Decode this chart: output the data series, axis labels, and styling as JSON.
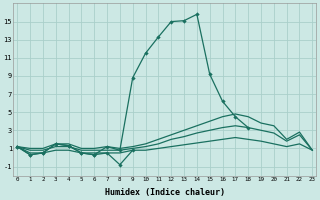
{
  "x": [
    0,
    1,
    2,
    3,
    4,
    5,
    6,
    7,
    8,
    9,
    10,
    11,
    12,
    13,
    14,
    15,
    16,
    17,
    18,
    19,
    20,
    21,
    22,
    23
  ],
  "line_peak": [
    1.2,
    0.3,
    0.5,
    1.5,
    1.3,
    0.5,
    0.3,
    1.2,
    0.8,
    8.8,
    11.5,
    13.3,
    15.0,
    15.1,
    15.8,
    9.2,
    6.2,
    4.5,
    3.3,
    null,
    null,
    null,
    null,
    null
  ],
  "line_zigzag": [
    1.2,
    0.3,
    0.5,
    1.5,
    1.3,
    0.5,
    0.3,
    0.5,
    -0.8,
    0.8,
    null,
    null,
    null,
    null,
    null,
    null,
    null,
    null,
    null,
    null,
    null,
    null,
    null,
    null
  ],
  "line_upper": [
    1.2,
    1.0,
    1.0,
    1.5,
    1.5,
    1.0,
    1.0,
    1.2,
    1.0,
    1.2,
    1.5,
    2.0,
    2.5,
    3.0,
    3.5,
    4.0,
    4.5,
    4.8,
    4.5,
    3.8,
    3.5,
    2.0,
    2.8,
    0.8
  ],
  "line_mid": [
    1.2,
    0.8,
    0.8,
    1.2,
    1.2,
    0.8,
    0.8,
    0.8,
    0.8,
    1.0,
    1.2,
    1.5,
    2.0,
    2.3,
    2.7,
    3.0,
    3.3,
    3.5,
    3.3,
    3.0,
    2.7,
    1.8,
    2.5,
    0.8
  ],
  "line_flat": [
    1.2,
    0.5,
    0.5,
    0.8,
    0.8,
    0.5,
    0.5,
    0.5,
    0.5,
    0.8,
    0.8,
    1.0,
    1.2,
    1.4,
    1.6,
    1.8,
    2.0,
    2.2,
    2.0,
    1.8,
    1.5,
    1.2,
    1.5,
    0.8
  ],
  "color": "#1a7060",
  "bg_color": "#cce8e4",
  "grid_color": "#aacfca",
  "xlabel": "Humidex (Indice chaleur)",
  "yticks": [
    -1,
    1,
    3,
    5,
    7,
    9,
    11,
    13,
    15
  ],
  "xticks": [
    0,
    1,
    2,
    3,
    4,
    5,
    6,
    7,
    8,
    9,
    10,
    11,
    12,
    13,
    14,
    15,
    16,
    17,
    18,
    19,
    20,
    21,
    22,
    23
  ],
  "ylim": [
    -2.0,
    17.0
  ],
  "xlim": [
    -0.3,
    23.3
  ]
}
